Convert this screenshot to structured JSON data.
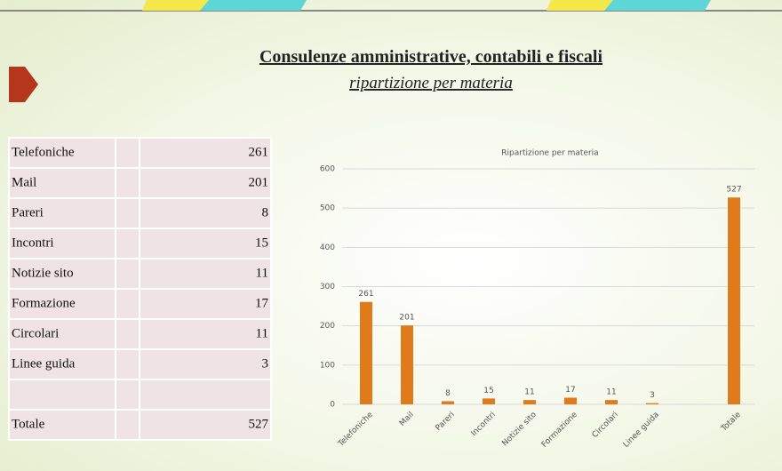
{
  "header": {
    "title": "Consulenze amministrative, contabili e fiscali",
    "subtitle": "ripartizione per materia"
  },
  "table": {
    "rows": [
      [
        "Telefoniche",
        261
      ],
      [
        "Mail",
        201
      ],
      [
        "Pareri",
        8
      ],
      [
        "Incontri",
        15
      ],
      [
        "Notizie sito",
        11
      ],
      [
        "Formazione",
        17
      ],
      [
        "Circolari",
        11
      ],
      [
        "Linee guida",
        3
      ]
    ],
    "total": [
      "Totale",
      527
    ]
  },
  "chart_data": {
    "type": "bar",
    "title": "Ripartizione per materia",
    "categories": [
      "Telefoniche",
      "Mail",
      "Pareri",
      "Incontri",
      "Notizie sito",
      "Formazione",
      "Circolari",
      "Linee guida",
      null,
      "Totale"
    ],
    "values": [
      261,
      201,
      8,
      15,
      11,
      17,
      11,
      3,
      null,
      527
    ],
    "color": "#e07b1c",
    "ylim": [
      0,
      600
    ],
    "yticks": [
      0,
      100,
      200,
      300,
      400,
      500,
      600
    ],
    "grid": true
  }
}
